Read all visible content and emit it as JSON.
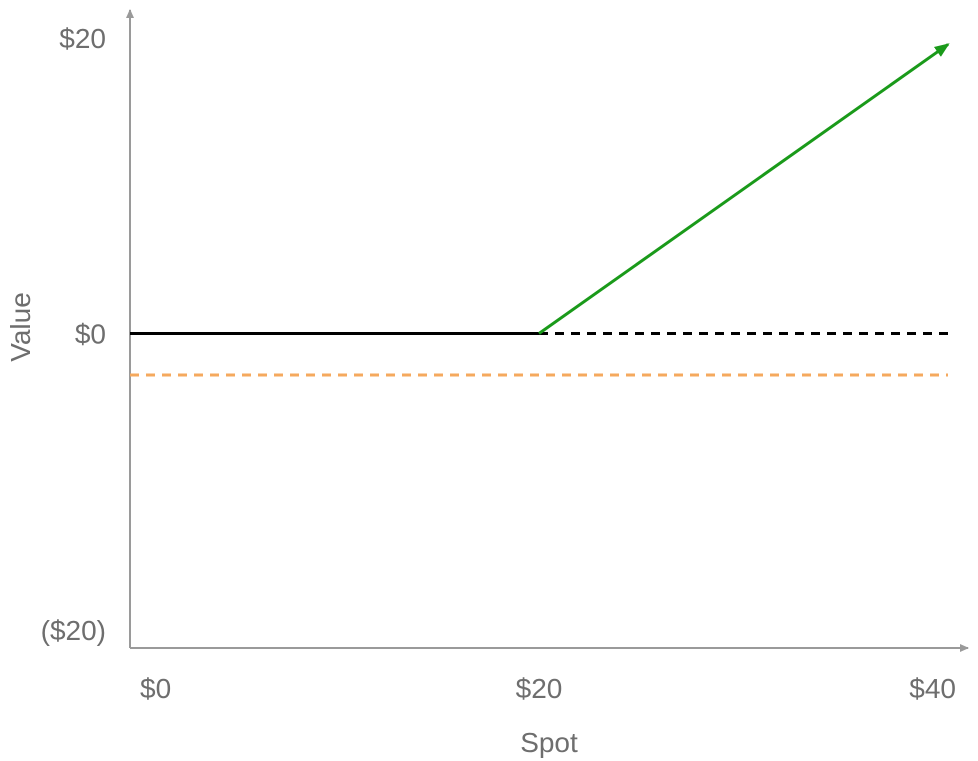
{
  "chart_data": {
    "type": "line",
    "title": "",
    "xlabel": "Spot",
    "ylabel": "Value",
    "xlim": [
      0,
      40
    ],
    "ylim": [
      -20,
      20
    ],
    "x_ticks": [
      {
        "value": 0,
        "label": "$0"
      },
      {
        "value": 20,
        "label": "$20"
      },
      {
        "value": 40,
        "label": "$40"
      }
    ],
    "y_ticks": [
      {
        "value": 20,
        "label": "$20"
      },
      {
        "value": 0,
        "label": "$0"
      },
      {
        "value": -20,
        "label": "($20)"
      }
    ],
    "grid": false,
    "legend": "none",
    "series": [
      {
        "style": "solid",
        "color": "#000000",
        "points": [
          [
            0,
            0
          ],
          [
            20,
            0
          ]
        ]
      },
      {
        "style": "dashed",
        "color": "#000000",
        "points": [
          [
            20,
            0
          ],
          [
            40,
            0
          ]
        ]
      },
      {
        "style": "solid-arrow",
        "color": "#1a9a1a",
        "points": [
          [
            20,
            0
          ],
          [
            40,
            19.5
          ]
        ]
      },
      {
        "style": "dashed",
        "color": "#f5a95e",
        "points": [
          [
            0,
            -2.8
          ],
          [
            40,
            -2.8
          ]
        ]
      }
    ],
    "colors": {
      "axis": "#9a9a9a",
      "tick_text": "#6e6e6e",
      "title_text": "#6e6e6e"
    }
  }
}
